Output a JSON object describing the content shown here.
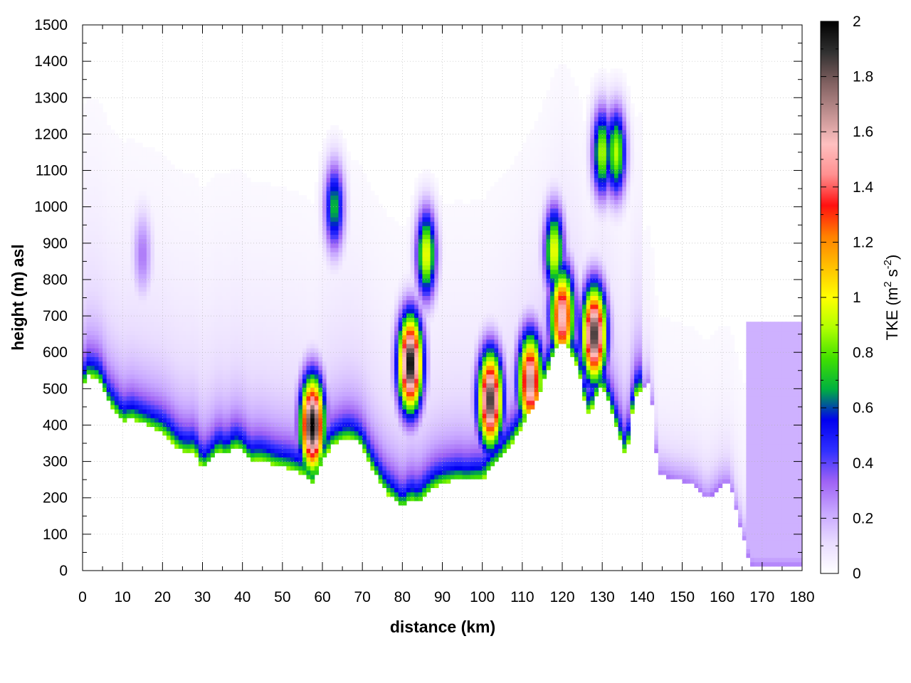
{
  "chart_data": {
    "type": "heatmap",
    "title": "",
    "xlabel": "distance (km)",
    "ylabel": "height (m) asl",
    "colorbar_label": "TKE (m",
    "colorbar_label_sup1": "2",
    "colorbar_label_mid": " s",
    "colorbar_label_sup2": "-2",
    "colorbar_label_end": ")",
    "xlim": [
      0,
      180
    ],
    "ylim": [
      0,
      1500
    ],
    "clim": [
      0,
      2
    ],
    "x_ticks": [
      "0",
      "10",
      "20",
      "30",
      "40",
      "50",
      "60",
      "70",
      "80",
      "90",
      "100",
      "110",
      "120",
      "130",
      "140",
      "150",
      "160",
      "170",
      "180"
    ],
    "y_ticks": [
      "0",
      "100",
      "200",
      "300",
      "400",
      "500",
      "600",
      "700",
      "800",
      "900",
      "1000",
      "1100",
      "1200",
      "1300",
      "1400",
      "1500"
    ],
    "cb_ticks": [
      "0",
      "0.2",
      "0.4",
      "0.6",
      "0.8",
      "1",
      "1.2",
      "1.4",
      "1.6",
      "1.8",
      "2"
    ],
    "grid": true,
    "colormap": [
      "#ffffff",
      "#e9dcff",
      "#c7a6ff",
      "#9e62f5",
      "#3030ff",
      "#0000f0",
      "#00b040",
      "#40e000",
      "#b0ff00",
      "#ffff00",
      "#ffc000",
      "#ff8000",
      "#ff1010",
      "#ff9090",
      "#ffc0c0",
      "#c09090",
      "#806060",
      "#303030",
      "#000000"
    ],
    "terrain": {
      "x": [
        0,
        1,
        2,
        3,
        4,
        5,
        6,
        8,
        10,
        11,
        12,
        14,
        16,
        18,
        20,
        22,
        24,
        26,
        28,
        30,
        32,
        34,
        36,
        38,
        40,
        42,
        44,
        46,
        48,
        50,
        52,
        54,
        56,
        57,
        58,
        60,
        62,
        64,
        66,
        68,
        70,
        72,
        74,
        76,
        78,
        80,
        82,
        84,
        86,
        88,
        90,
        92,
        94,
        96,
        98,
        100,
        102,
        104,
        106,
        108,
        110,
        112,
        114,
        116,
        118,
        120,
        122,
        124,
        126,
        127,
        128,
        130,
        132,
        134,
        136,
        138,
        140,
        142,
        144,
        146,
        148,
        150,
        152,
        154,
        156,
        158,
        160,
        162,
        164,
        166,
        167,
        168,
        170,
        175,
        180
      ],
      "height": [
        490,
        540,
        530,
        535,
        520,
        510,
        470,
        440,
        410,
        410,
        420,
        410,
        400,
        390,
        380,
        360,
        335,
        325,
        330,
        280,
        300,
        330,
        315,
        340,
        330,
        300,
        305,
        300,
        290,
        285,
        280,
        270,
        260,
        235,
        245,
        300,
        340,
        355,
        365,
        360,
        340,
        290,
        250,
        215,
        195,
        170,
        195,
        185,
        210,
        230,
        240,
        245,
        250,
        245,
        250,
        250,
        280,
        300,
        330,
        360,
        400,
        440,
        480,
        540,
        600,
        640,
        600,
        560,
        445,
        430,
        470,
        510,
        450,
        380,
        310,
        480,
        500,
        520,
        265,
        260,
        250,
        245,
        240,
        225,
        195,
        215,
        240,
        240,
        140,
        60,
        15,
        10,
        10,
        10,
        10
      ]
    },
    "hotspots": [
      {
        "x": 57.5,
        "z": 400,
        "tke": 2.0
      },
      {
        "x": 63,
        "z": 1000,
        "tke": 0.7
      },
      {
        "x": 82,
        "z": 570,
        "tke": 2.0
      },
      {
        "x": 86,
        "z": 870,
        "tke": 1.0
      },
      {
        "x": 102,
        "z": 470,
        "tke": 1.9
      },
      {
        "x": 112,
        "z": 520,
        "tke": 1.7
      },
      {
        "x": 118,
        "z": 880,
        "tke": 1.0
      },
      {
        "x": 120,
        "z": 700,
        "tke": 1.6
      },
      {
        "x": 128,
        "z": 650,
        "tke": 1.9
      },
      {
        "x": 130,
        "z": 1150,
        "tke": 0.9
      },
      {
        "x": 133.5,
        "z": 1150,
        "tke": 0.9
      },
      {
        "x": 15,
        "z": 870,
        "tke": 0.3
      },
      {
        "x": 175,
        "z": 350,
        "tke": 0.2
      }
    ]
  }
}
